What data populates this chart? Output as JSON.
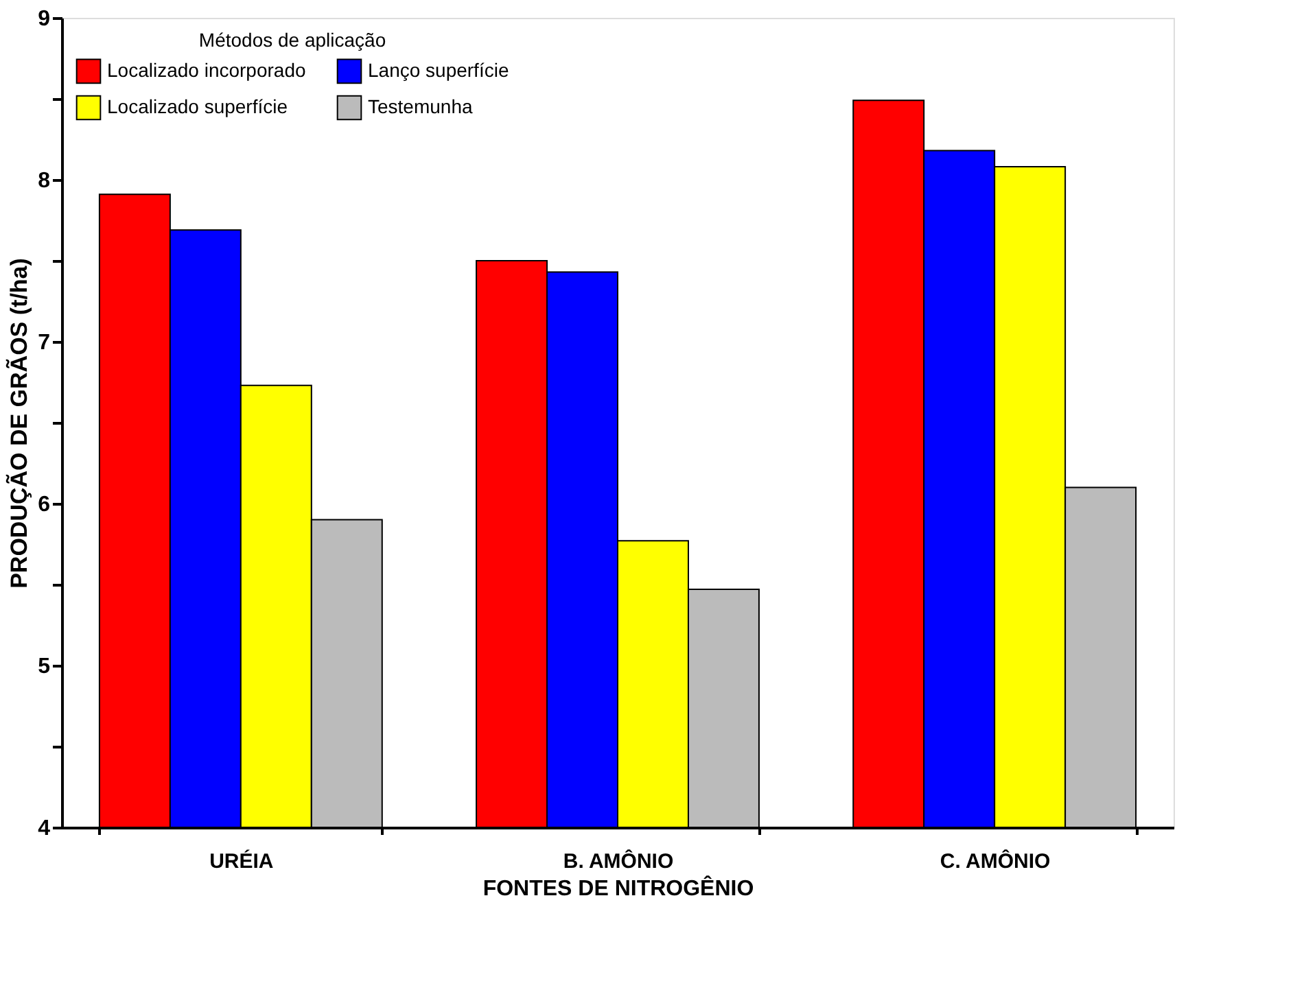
{
  "chart_data": {
    "type": "bar",
    "xlabel": "FONTES DE NITROGÊNIO",
    "ylabel": "PRODUÇÃO DE GRÃOS (t/ha)",
    "legend_title": "Métodos de aplicação",
    "categories": [
      "URÉIA",
      "B. AMÔNIO",
      "C. AMÔNIO"
    ],
    "series": [
      {
        "name": "Localizado incorporado",
        "color": "#ff0000",
        "values": [
          7.91,
          7.5,
          8.49
        ]
      },
      {
        "name": "Lanço superfície",
        "color": "#0000ff",
        "values": [
          7.69,
          7.43,
          8.18
        ]
      },
      {
        "name": "Localizado superfície",
        "color": "#ffff00",
        "values": [
          6.73,
          5.77,
          8.08
        ]
      },
      {
        "name": "Testemunha",
        "color": "#bbbbbb",
        "values": [
          5.9,
          5.47,
          6.1
        ]
      }
    ],
    "ylim": [
      4,
      9
    ],
    "yticks": [
      4,
      {
        "value": 4.5,
        "label": null
      },
      5,
      {
        "value": 5.5,
        "label": null
      },
      6,
      {
        "value": 6.5,
        "label": null
      },
      7,
      {
        "value": 7.5,
        "label": null
      },
      8,
      {
        "value": 8.5,
        "label": null
      },
      9
    ],
    "legend": "top left",
    "grid": false
  }
}
